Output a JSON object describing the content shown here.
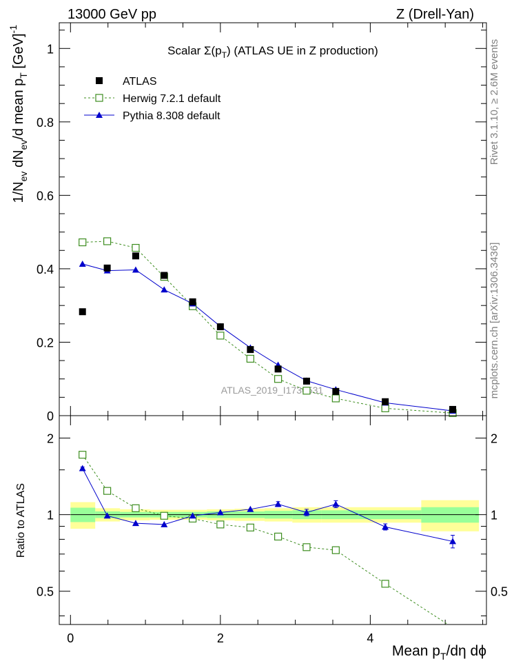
{
  "header": {
    "left": "13000 GeV pp",
    "right": "Z (Drell-Yan)"
  },
  "side": {
    "rivet": "Rivet 3.1.10, ≥ 2.6M events",
    "mcplots": "mcplots.cern.ch [arXiv:1306.3436]"
  },
  "colors": {
    "atlas": "#000000",
    "herwig": "#3c8c1e",
    "pythia": "#0000cc",
    "band_inner": "#99ff99",
    "band_outer": "#ffff99"
  },
  "chart_data": [
    {
      "type": "scatter",
      "title": "Scalar Σ(p_T) (ATLAS UE in Z production)",
      "title_parts": {
        "a": "Scalar Σ(p",
        "sub": "T",
        "b": ") (ATLAS UE in Z production)"
      },
      "ylabel": "1/N_ev dN_ev/d mean p_T [GeV]^-1",
      "ylabel_parts": {
        "a": "1/N",
        "s1": "ev",
        "b": " dN",
        "s2": "ev",
        "c": "/d mean p",
        "s3": "T",
        "d": " [GeV]",
        "sup": "-1"
      },
      "watermark": "ATLAS_2019_I1736531",
      "xlim": [
        -0.15,
        5.55
      ],
      "ylim": [
        0,
        1.07
      ],
      "yticks": [
        0,
        0.2,
        0.4,
        0.6,
        0.8,
        1
      ],
      "ytick_labels": [
        "0",
        "0.2",
        "0.4",
        "0.6",
        "0.8",
        "1"
      ],
      "legend_position": "top-left",
      "series": [
        {
          "name": "ATLAS",
          "marker": "square-filled",
          "x": [
            0.16,
            0.49,
            0.87,
            1.25,
            1.63,
            2.0,
            2.4,
            2.77,
            3.15,
            3.54,
            4.2,
            5.1
          ],
          "y": [
            0.283,
            0.402,
            0.435,
            0.382,
            0.31,
            0.242,
            0.18,
            0.127,
            0.094,
            0.066,
            0.038,
            0.017
          ]
        },
        {
          "name": "Herwig 7.2.1 default",
          "marker": "square-open-dashed",
          "x": [
            0.16,
            0.49,
            0.87,
            1.25,
            1.63,
            2.0,
            2.4,
            2.77,
            3.15,
            3.54,
            4.2,
            5.1
          ],
          "y": [
            0.472,
            0.475,
            0.457,
            0.378,
            0.298,
            0.218,
            0.155,
            0.1,
            0.068,
            0.047,
            0.02,
            0.007
          ]
        },
        {
          "name": "Pythia 8.308 default",
          "marker": "triangle-filled",
          "x": [
            0.16,
            0.49,
            0.87,
            1.25,
            1.63,
            2.0,
            2.4,
            2.77,
            3.15,
            3.54,
            4.2,
            5.1
          ],
          "y": [
            0.413,
            0.395,
            0.397,
            0.343,
            0.305,
            0.243,
            0.185,
            0.138,
            0.095,
            0.071,
            0.035,
            0.013
          ]
        }
      ]
    },
    {
      "type": "scatter",
      "ylabel": "Ratio to ATLAS",
      "xlabel": "Mean p_T/dη dϕ",
      "xlabel_parts": {
        "a": "Mean p",
        "sub": "T",
        "b": "/dη dϕ"
      },
      "xlim": [
        -0.15,
        5.55
      ],
      "xticks": [
        0,
        2,
        4
      ],
      "xtick_labels": [
        "0",
        "2",
        "4"
      ],
      "ylim": [
        0.37,
        2.45
      ],
      "yscale": "log",
      "yticks": [
        0.5,
        1,
        2
      ],
      "ytick_labels": [
        "0.5",
        "1",
        "2"
      ],
      "bands": {
        "edges": [
          0,
          0.33,
          0.66,
          1.06,
          1.44,
          1.82,
          2.19,
          2.59,
          2.96,
          3.35,
          3.73,
          4.68,
          5.45
        ],
        "inner": [
          0.065,
          0.03,
          0.025,
          0.025,
          0.025,
          0.03,
          0.03,
          0.035,
          0.04,
          0.04,
          0.04,
          0.07
        ],
        "outer": [
          0.12,
          0.06,
          0.05,
          0.045,
          0.045,
          0.05,
          0.055,
          0.06,
          0.07,
          0.07,
          0.07,
          0.14
        ]
      },
      "series": [
        {
          "name": "Herwig 7.2.1 default",
          "x": [
            0.16,
            0.49,
            0.87,
            1.25,
            1.63,
            2.0,
            2.4,
            2.77,
            3.15,
            3.54,
            4.2,
            5.1
          ],
          "y": [
            1.72,
            1.24,
            1.06,
            0.99,
            0.965,
            0.915,
            0.89,
            0.82,
            0.745,
            0.725,
            0.535,
            0.36
          ]
        },
        {
          "name": "Pythia 8.308 default",
          "x": [
            0.16,
            0.49,
            0.87,
            1.25,
            1.63,
            2.0,
            2.4,
            2.77,
            3.15,
            3.54,
            4.2,
            5.1
          ],
          "y": [
            1.52,
            0.99,
            0.925,
            0.915,
            0.99,
            1.02,
            1.05,
            1.1,
            1.02,
            1.1,
            0.895,
            0.785
          ],
          "yerr": [
            0.02,
            0.01,
            0.01,
            0.01,
            0.01,
            0.015,
            0.015,
            0.025,
            0.03,
            0.035,
            0.025,
            0.045
          ]
        }
      ]
    }
  ]
}
